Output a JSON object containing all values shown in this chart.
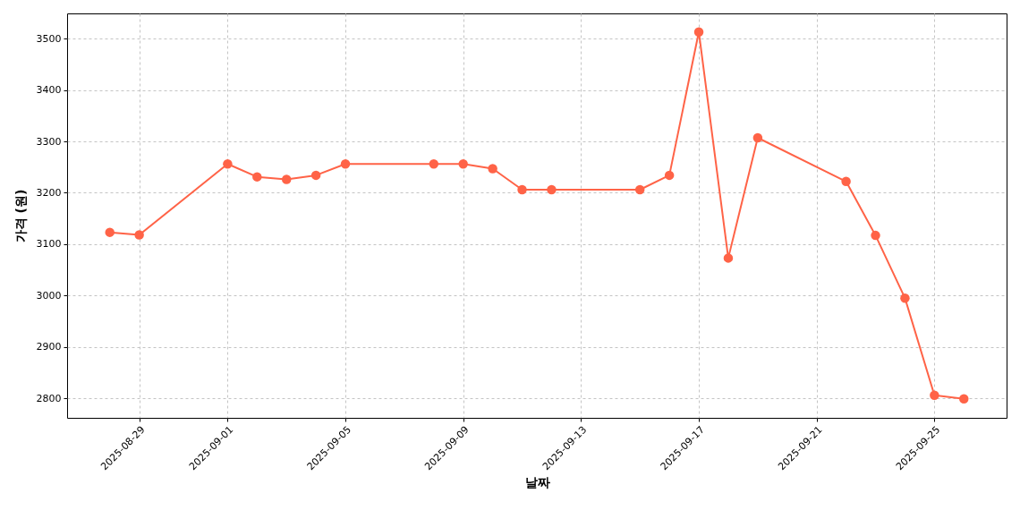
{
  "chart_data": {
    "type": "line",
    "xlabel": "날짜",
    "ylabel": "가격 (원)",
    "x": [
      "2025-08-28",
      "2025-08-29",
      "2025-09-01",
      "2025-09-02",
      "2025-09-03",
      "2025-09-04",
      "2025-09-05",
      "2025-09-08",
      "2025-09-09",
      "2025-09-10",
      "2025-09-11",
      "2025-09-12",
      "2025-09-15",
      "2025-09-16",
      "2025-09-17",
      "2025-09-18",
      "2025-09-19",
      "2025-09-22",
      "2025-09-23",
      "2025-09-24",
      "2025-09-25",
      "2025-09-26"
    ],
    "series": [
      {
        "color": "#ff6347",
        "values": [
          3123,
          3118,
          3256,
          3231,
          3226,
          3234,
          3256,
          3256,
          3256,
          3247,
          3206,
          3206,
          3206,
          3234,
          3513,
          3073,
          3307,
          3222,
          3117,
          2995,
          2806,
          2799
        ]
      }
    ],
    "xlim": [
      "2025-08-26T13:12",
      "2025-09-27T10:48"
    ],
    "ylim": [
      2762,
      3549
    ],
    "xticks": [
      "2025-08-29",
      "2025-09-01",
      "2025-09-05",
      "2025-09-09",
      "2025-09-13",
      "2025-09-17",
      "2025-09-21",
      "2025-09-25"
    ],
    "yticks": [
      2800,
      2900,
      3000,
      3100,
      3200,
      3300,
      3400,
      3500
    ],
    "grid": true,
    "marker": "circle",
    "line_style": "solid"
  }
}
